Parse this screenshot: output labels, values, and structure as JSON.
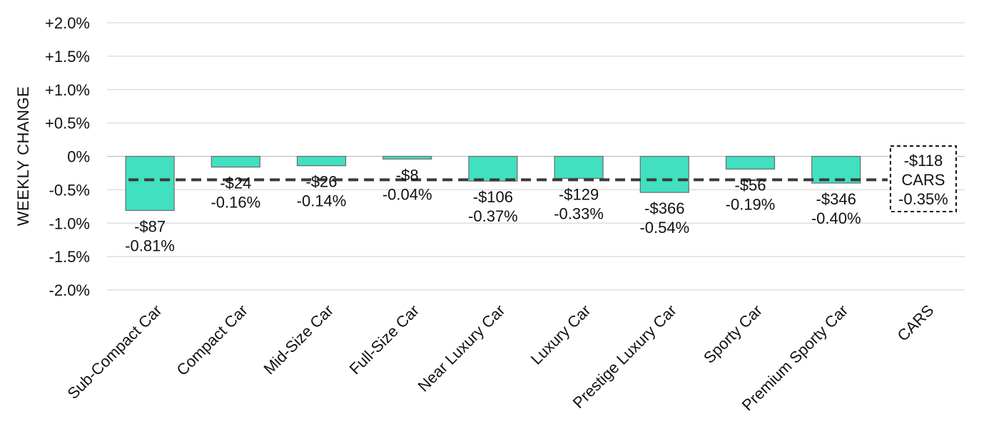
{
  "chart_data": {
    "type": "bar",
    "ylabel": "WEEKLY CHANGE",
    "xlabel": "",
    "ylim": [
      -2.0,
      2.0
    ],
    "yticks": [
      2.0,
      1.5,
      1.0,
      0.5,
      0,
      -0.5,
      -1.0,
      -1.5,
      -2.0
    ],
    "ytick_labels": [
      "+2.0%",
      "+1.5%",
      "+1.0%",
      "+0.5%",
      "0%",
      "-0.5%",
      "-1.0%",
      "-1.5%",
      "-2.0%"
    ],
    "grid": true,
    "categories": [
      "Sub-Compact Car",
      "Compact Car",
      "Mid-Size Car",
      "Full-Size Car",
      "Near Luxury Car",
      "Luxury Car",
      "Prestige Luxury Car",
      "Sporty Car",
      "Premium Sporty Car",
      "CARS"
    ],
    "values": [
      -0.81,
      -0.16,
      -0.14,
      -0.04,
      -0.37,
      -0.33,
      -0.54,
      -0.19,
      -0.4,
      null
    ],
    "dollar_labels": [
      "-$87",
      "-$24",
      "-$26",
      "-$8",
      "-$106",
      "-$129",
      "-$366",
      "-$56",
      "-$346",
      "-$118"
    ],
    "percent_labels": [
      "-0.81%",
      "-0.16%",
      "-0.14%",
      "-0.04%",
      "-0.37%",
      "-0.33%",
      "-0.54%",
      "-0.19%",
      "-0.40%",
      "-0.35%"
    ],
    "reference_line": {
      "label": "CARS",
      "value": -0.35,
      "dollar_label": "-$118",
      "percent_label": "-0.35%",
      "style": "dashed"
    },
    "bar_color": "#40e0c0",
    "bar_stroke": "#6b6b6b",
    "reference_color": "#3a3a3a",
    "grid_color": "#d9d9d9"
  }
}
